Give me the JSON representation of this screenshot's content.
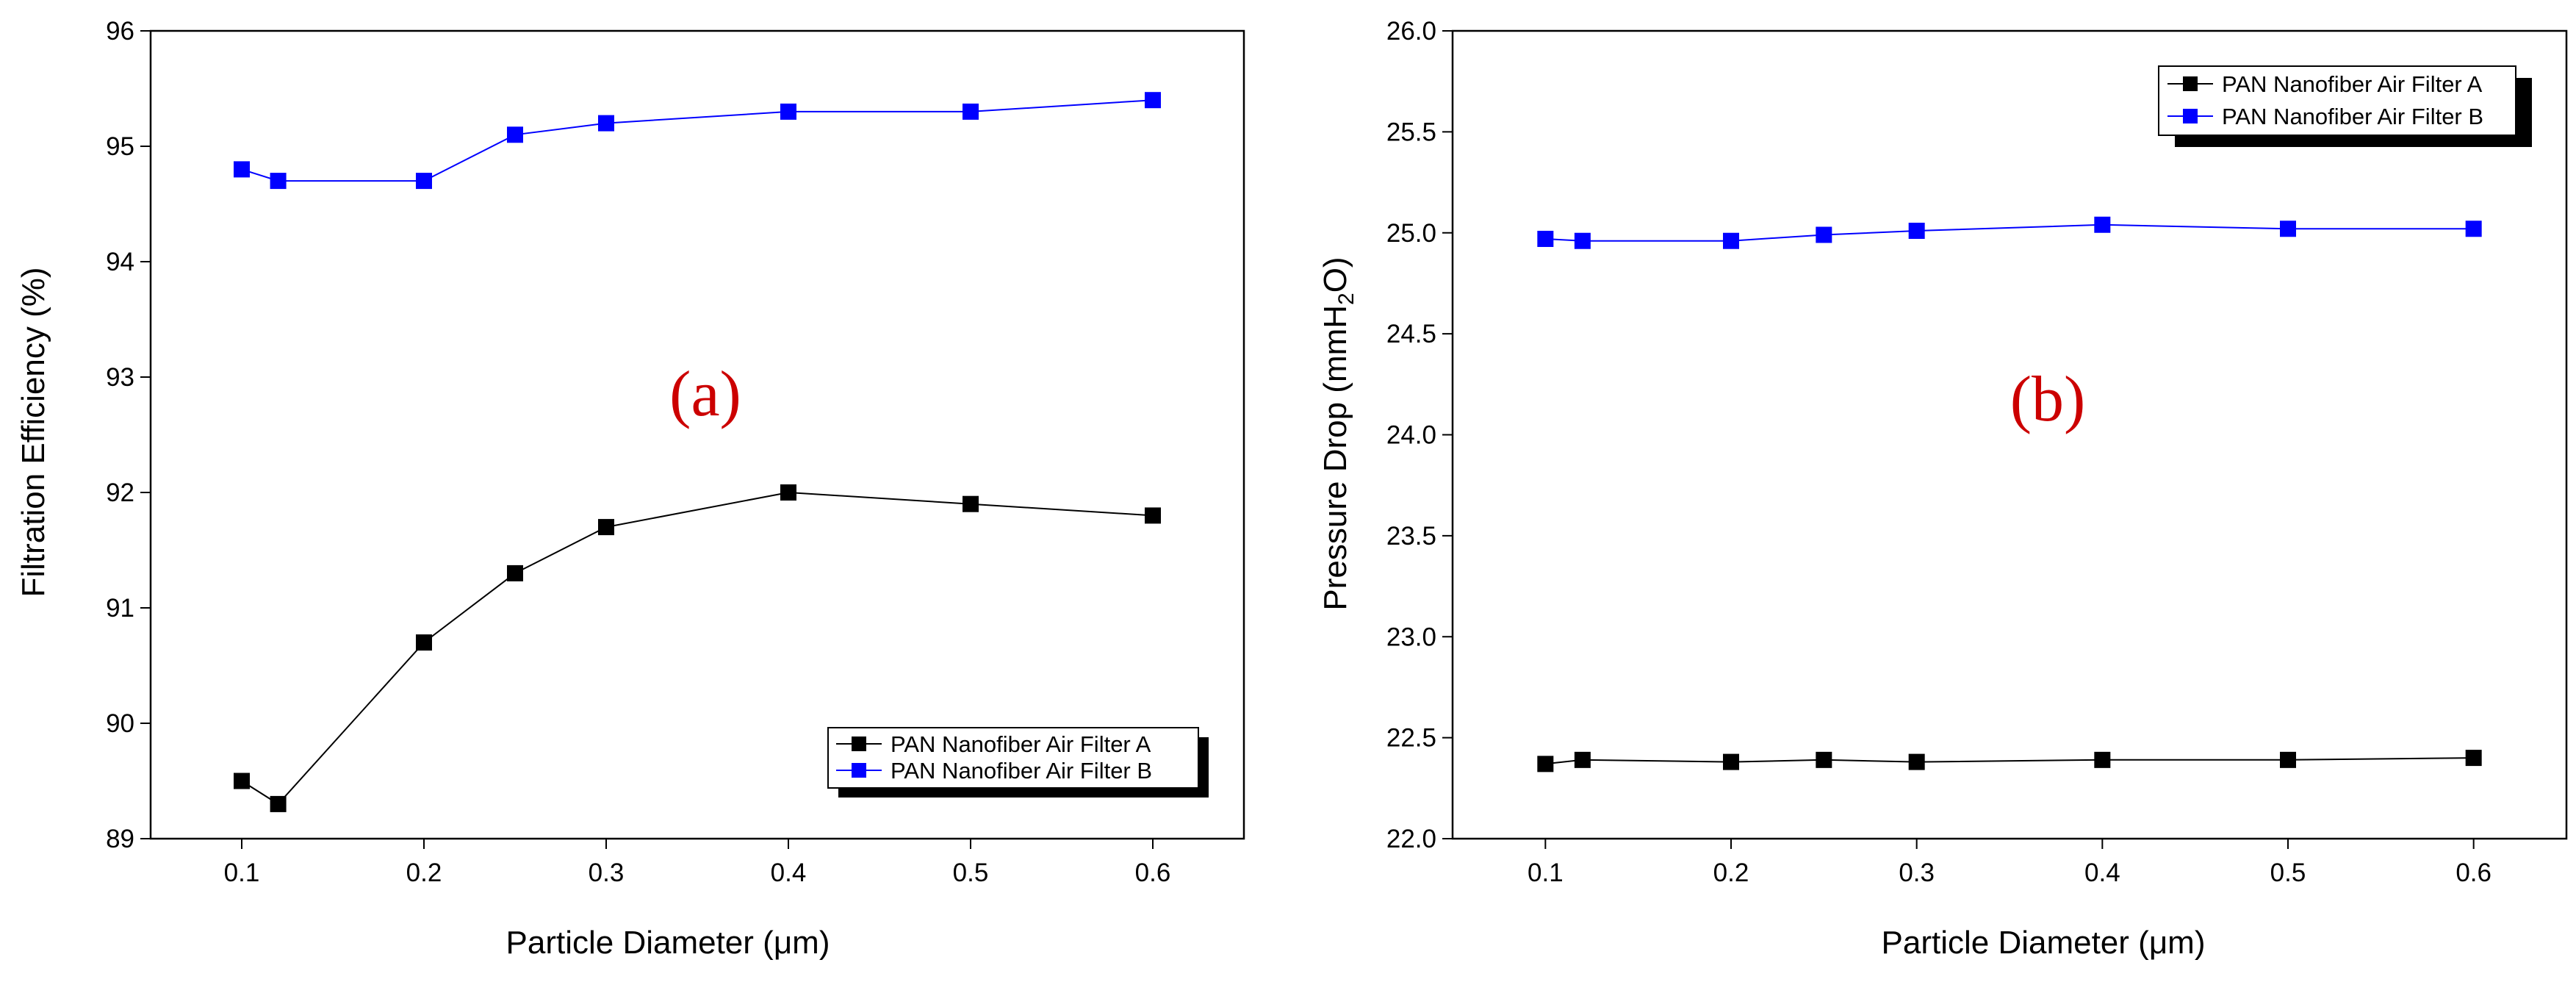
{
  "figure": {
    "panel_label_color": "#cc0000"
  },
  "chart_data": [
    {
      "type": "line",
      "panel_label": "(a)",
      "xlabel_main": "Particle Diameter (",
      "xlabel_unit": "μm",
      "xlabel_close": ")",
      "ylabel_main": "Filtration Efficiency (%)",
      "xlim": [
        0.05,
        0.65
      ],
      "ylim": [
        89,
        96
      ],
      "xticks": [
        0.1,
        0.2,
        0.3,
        0.4,
        0.5,
        0.6
      ],
      "xtick_labels": [
        "0.1",
        "0.2",
        "0.3",
        "0.4",
        "0.5",
        "0.6"
      ],
      "yticks": [
        89,
        90,
        91,
        92,
        93,
        94,
        95,
        96
      ],
      "ytick_labels": [
        "89",
        "90",
        "91",
        "92",
        "93",
        "94",
        "95",
        "96"
      ],
      "x": [
        0.1,
        0.12,
        0.2,
        0.25,
        0.3,
        0.4,
        0.5,
        0.6
      ],
      "legend_position": "bottom-right",
      "series": [
        {
          "name": "PAN Nanofiber Air Filter A",
          "color": "#000000",
          "values": [
            89.5,
            89.3,
            90.7,
            91.3,
            91.7,
            92.0,
            91.9,
            91.8
          ]
        },
        {
          "name": "PAN Nanofiber Air Filter B",
          "color": "#0000ff",
          "values": [
            94.8,
            94.7,
            94.7,
            95.1,
            95.2,
            95.3,
            95.3,
            95.4
          ]
        }
      ]
    },
    {
      "type": "line",
      "panel_label": "(b)",
      "xlabel_main": "Particle Diameter (",
      "xlabel_unit": "μm",
      "xlabel_close": ")",
      "ylabel_main": "Pressure Drop (mmH",
      "ylabel_sub": "2",
      "ylabel_close": "O)",
      "xlim": [
        0.05,
        0.65
      ],
      "ylim": [
        22.0,
        26.0
      ],
      "xticks": [
        0.1,
        0.2,
        0.3,
        0.4,
        0.5,
        0.6
      ],
      "xtick_labels": [
        "0.1",
        "0.2",
        "0.3",
        "0.4",
        "0.5",
        "0.6"
      ],
      "yticks": [
        22.0,
        22.5,
        23.0,
        23.5,
        24.0,
        24.5,
        25.0,
        25.5,
        26.0
      ],
      "ytick_labels": [
        "22.0",
        "22.5",
        "23.0",
        "23.5",
        "24.0",
        "24.5",
        "25.0",
        "25.5",
        "26.0"
      ],
      "x": [
        0.1,
        0.12,
        0.2,
        0.25,
        0.3,
        0.4,
        0.5,
        0.6
      ],
      "legend_position": "top-right",
      "series": [
        {
          "name": "PAN Nanofiber Air Filter A",
          "color": "#000000",
          "values": [
            22.37,
            22.39,
            22.38,
            22.39,
            22.38,
            22.39,
            22.39,
            22.4
          ]
        },
        {
          "name": "PAN Nanofiber Air Filter B",
          "color": "#0000ff",
          "values": [
            24.97,
            24.96,
            24.96,
            24.99,
            25.01,
            25.04,
            25.02,
            25.02
          ]
        }
      ]
    }
  ]
}
